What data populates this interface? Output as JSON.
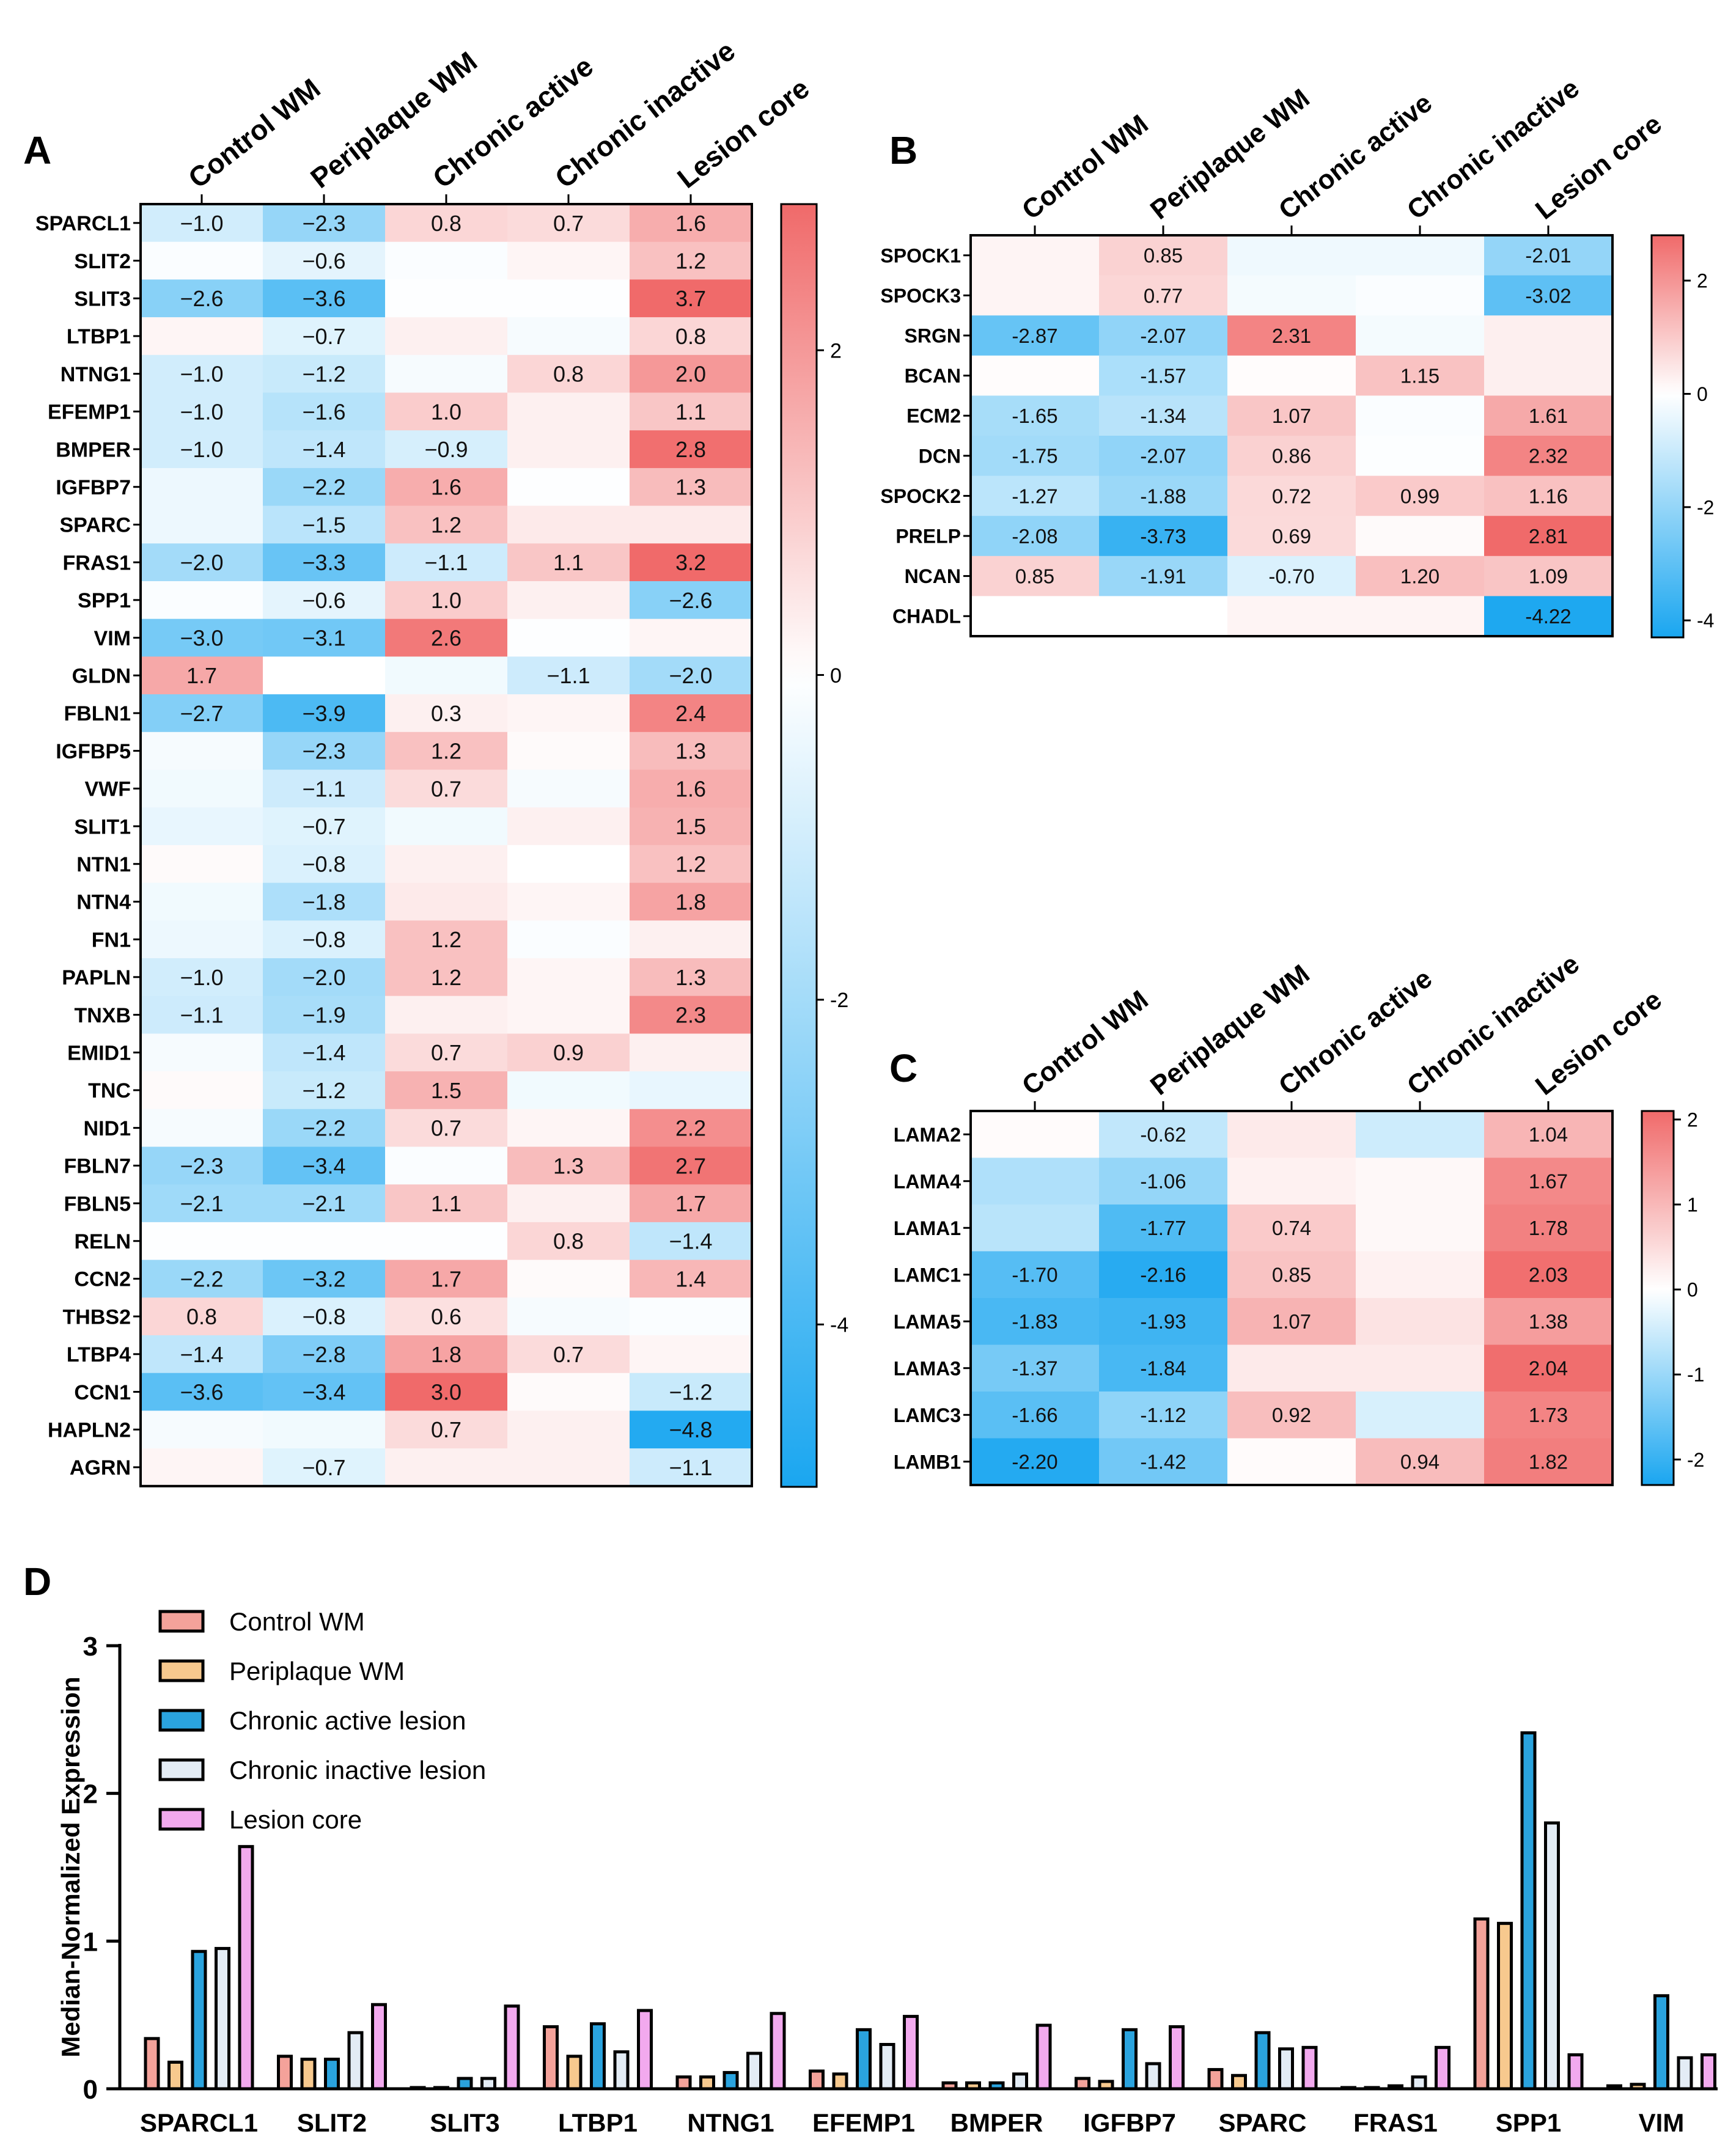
{
  "columns": [
    "Control WM",
    "Periplaque WM",
    "Chronic active",
    "Chronic inactive",
    "Lesion core"
  ],
  "colors": {
    "pos": "#f06a6a",
    "neg": "#1aa6f0",
    "axis": "#000000"
  },
  "chart_data": [
    {
      "panel": "A",
      "type": "heatmap",
      "columns": [
        "Control WM",
        "Periplaque WM",
        "Chronic active",
        "Chronic inactive",
        "Lesion core"
      ],
      "color_range": [
        -5,
        2.9
      ],
      "colorbar_ticks": [
        2,
        0,
        -2,
        -4
      ],
      "colorbar_ticks_text": [
        "2",
        "0",
        "-2",
        "-4"
      ],
      "rows": [
        {
          "gene": "SPARCL1",
          "values": [
            -1.0,
            -2.3,
            0.8,
            0.7,
            1.6
          ],
          "labels": [
            "−1.0",
            "−2.3",
            "0.8",
            "0.7",
            "1.6"
          ]
        },
        {
          "gene": "SLIT2",
          "values": [
            -0.1,
            -0.6,
            -0.1,
            0.2,
            1.2
          ],
          "labels": [
            "",
            "−0.6",
            "",
            "",
            "1.2"
          ]
        },
        {
          "gene": "SLIT3",
          "values": [
            -2.6,
            -3.6,
            -0.05,
            -0.05,
            3.7
          ],
          "labels": [
            "−2.6",
            "−3.6",
            "",
            "",
            "3.7"
          ]
        },
        {
          "gene": "LTBP1",
          "values": [
            0.2,
            -0.7,
            0.3,
            -0.2,
            0.8
          ],
          "labels": [
            "",
            "−0.7",
            "",
            "",
            "0.8"
          ]
        },
        {
          "gene": "NTNG1",
          "values": [
            -1.0,
            -1.2,
            -0.2,
            0.8,
            2.0
          ],
          "labels": [
            "−1.0",
            "−1.2",
            "",
            "0.8",
            "2.0"
          ]
        },
        {
          "gene": "EFEMP1",
          "values": [
            -1.0,
            -1.6,
            1.0,
            0.3,
            1.1
          ],
          "labels": [
            "−1.0",
            "−1.6",
            "1.0",
            "",
            "1.1"
          ]
        },
        {
          "gene": "BMPER",
          "values": [
            -1.0,
            -1.4,
            -0.9,
            0.3,
            2.8
          ],
          "labels": [
            "−1.0",
            "−1.4",
            "−0.9",
            "",
            "2.8"
          ]
        },
        {
          "gene": "IGFBP7",
          "values": [
            -0.4,
            -2.2,
            1.6,
            -0.05,
            1.3
          ],
          "labels": [
            "",
            "−2.2",
            "1.6",
            "",
            "1.3"
          ]
        },
        {
          "gene": "SPARC",
          "values": [
            -0.4,
            -1.5,
            1.2,
            0.4,
            0.4
          ],
          "labels": [
            "",
            "−1.5",
            "1.2",
            "",
            ""
          ]
        },
        {
          "gene": "FRAS1",
          "values": [
            -2.0,
            -3.3,
            -1.1,
            1.1,
            3.2
          ],
          "labels": [
            "−2.0",
            "−3.3",
            "−1.1",
            "1.1",
            "3.2"
          ]
        },
        {
          "gene": "SPP1",
          "values": [
            -0.1,
            -0.6,
            1.0,
            0.3,
            -2.6
          ],
          "labels": [
            "",
            "−0.6",
            "1.0",
            "",
            "−2.6"
          ]
        },
        {
          "gene": "VIM",
          "values": [
            -3.0,
            -3.1,
            2.6,
            -0.05,
            0.2
          ],
          "labels": [
            "−3.0",
            "−3.1",
            "2.6",
            "",
            ""
          ]
        },
        {
          "gene": "GLDN",
          "values": [
            1.7,
            0.0,
            -0.3,
            -1.1,
            -2.0
          ],
          "labels": [
            "1.7",
            "",
            "",
            "−1.1",
            "−2.0"
          ]
        },
        {
          "gene": "FBLN1",
          "values": [
            -2.7,
            -3.9,
            0.3,
            0.2,
            2.4
          ],
          "labels": [
            "−2.7",
            "−3.9",
            "0.3",
            "",
            "2.4"
          ]
        },
        {
          "gene": "IGFBP5",
          "values": [
            -0.2,
            -2.3,
            1.2,
            0.1,
            1.3
          ],
          "labels": [
            "",
            "−2.3",
            "1.2",
            "",
            "1.3"
          ]
        },
        {
          "gene": "VWF",
          "values": [
            -0.3,
            -1.1,
            0.7,
            -0.2,
            1.6
          ],
          "labels": [
            "",
            "−1.1",
            "0.7",
            "",
            "1.6"
          ]
        },
        {
          "gene": "SLIT1",
          "values": [
            -0.5,
            -0.7,
            -0.3,
            0.3,
            1.5
          ],
          "labels": [
            "",
            "−0.7",
            "",
            "",
            "1.5"
          ]
        },
        {
          "gene": "NTN1",
          "values": [
            0.1,
            -0.8,
            0.3,
            0.0,
            1.2
          ],
          "labels": [
            "",
            "−0.8",
            "",
            "",
            "1.2"
          ]
        },
        {
          "gene": "NTN4",
          "values": [
            -0.3,
            -1.8,
            0.4,
            0.2,
            1.8
          ],
          "labels": [
            "",
            "−1.8",
            "",
            "",
            "1.8"
          ]
        },
        {
          "gene": "FN1",
          "values": [
            -0.4,
            -0.8,
            1.2,
            -0.1,
            0.3
          ],
          "labels": [
            "",
            "−0.8",
            "1.2",
            "",
            ""
          ]
        },
        {
          "gene": "PAPLN",
          "values": [
            -1.0,
            -2.0,
            1.2,
            0.2,
            1.3
          ],
          "labels": [
            "−1.0",
            "−2.0",
            "1.2",
            "",
            "1.3"
          ]
        },
        {
          "gene": "TNXB",
          "values": [
            -1.1,
            -1.9,
            0.3,
            0.2,
            2.3
          ],
          "labels": [
            "−1.1",
            "−1.9",
            "",
            "",
            "2.3"
          ]
        },
        {
          "gene": "EMID1",
          "values": [
            -0.2,
            -1.4,
            0.7,
            0.9,
            0.3
          ],
          "labels": [
            "",
            "−1.4",
            "0.7",
            "0.9",
            ""
          ]
        },
        {
          "gene": "TNC",
          "values": [
            0.1,
            -1.2,
            1.5,
            -0.3,
            -0.5
          ],
          "labels": [
            "",
            "−1.2",
            "1.5",
            "",
            ""
          ]
        },
        {
          "gene": "NID1",
          "values": [
            -0.2,
            -2.2,
            0.7,
            0.2,
            2.2
          ],
          "labels": [
            "",
            "−2.2",
            "0.7",
            "",
            "2.2"
          ]
        },
        {
          "gene": "FBLN7",
          "values": [
            -2.3,
            -3.4,
            -0.1,
            1.3,
            2.7
          ],
          "labels": [
            "−2.3",
            "−3.4",
            "",
            "1.3",
            "2.7"
          ]
        },
        {
          "gene": "FBLN5",
          "values": [
            -2.1,
            -2.1,
            1.1,
            0.3,
            1.7
          ],
          "labels": [
            "−2.1",
            "−2.1",
            "1.1",
            "",
            "1.7"
          ]
        },
        {
          "gene": "RELN",
          "values": [
            -0.05,
            -0.05,
            -0.05,
            0.8,
            -1.4
          ],
          "labels": [
            "",
            "",
            "",
            "0.8",
            "−1.4"
          ]
        },
        {
          "gene": "CCN2",
          "values": [
            -2.2,
            -3.2,
            1.7,
            0.1,
            1.4
          ],
          "labels": [
            "−2.2",
            "−3.2",
            "1.7",
            "",
            "1.4"
          ]
        },
        {
          "gene": "THBS2",
          "values": [
            0.8,
            -0.8,
            0.6,
            -0.2,
            -0.1
          ],
          "labels": [
            "0.8",
            "−0.8",
            "0.6",
            "",
            ""
          ]
        },
        {
          "gene": "LTBP4",
          "values": [
            -1.4,
            -2.8,
            1.8,
            0.7,
            0.2
          ],
          "labels": [
            "−1.4",
            "−2.8",
            "1.8",
            "0.7",
            ""
          ]
        },
        {
          "gene": "CCN1",
          "values": [
            -3.6,
            -3.4,
            3.0,
            0.1,
            -1.2
          ],
          "labels": [
            "−3.6",
            "−3.4",
            "3.0",
            "",
            "−1.2"
          ]
        },
        {
          "gene": "HAPLN2",
          "values": [
            -0.2,
            -0.3,
            0.7,
            0.3,
            -4.8
          ],
          "labels": [
            "",
            "",
            "0.7",
            "",
            "−4.8"
          ]
        },
        {
          "gene": "AGRN",
          "values": [
            0.2,
            -0.7,
            0.3,
            0.3,
            -1.1
          ],
          "labels": [
            "",
            "−0.7",
            "",
            "",
            "−1.1"
          ]
        }
      ]
    },
    {
      "panel": "B",
      "type": "heatmap",
      "columns": [
        "Control WM",
        "Periplaque WM",
        "Chronic active",
        "Chronic inactive",
        "Lesion core"
      ],
      "color_range": [
        -4.3,
        2.8
      ],
      "colorbar_ticks": [
        2,
        0,
        -2,
        -4
      ],
      "colorbar_ticks_text": [
        "2",
        "0",
        "-2",
        "-4"
      ],
      "rows": [
        {
          "gene": "SPOCK1",
          "values": [
            0.2,
            0.85,
            -0.3,
            -0.3,
            -2.01
          ],
          "labels": [
            "",
            "0.85",
            "",
            "",
            "-2.01"
          ]
        },
        {
          "gene": "SPOCK3",
          "values": [
            0.2,
            0.77,
            -0.2,
            -0.1,
            -3.02
          ],
          "labels": [
            "",
            "0.77",
            "",
            "",
            "-3.02"
          ]
        },
        {
          "gene": "SRGN",
          "values": [
            -2.87,
            -2.07,
            2.31,
            -0.2,
            0.3
          ],
          "labels": [
            "-2.87",
            "-2.07",
            "2.31",
            "",
            ""
          ]
        },
        {
          "gene": "BCAN",
          "values": [
            0.05,
            -1.57,
            0.05,
            1.15,
            0.3
          ],
          "labels": [
            "",
            "-1.57",
            "",
            "1.15",
            ""
          ]
        },
        {
          "gene": "ECM2",
          "values": [
            -1.65,
            -1.34,
            1.07,
            -0.1,
            1.61
          ],
          "labels": [
            "-1.65",
            "-1.34",
            "1.07",
            "",
            "1.61"
          ]
        },
        {
          "gene": "DCN",
          "values": [
            -1.75,
            -2.07,
            0.86,
            -0.05,
            2.32
          ],
          "labels": [
            "-1.75",
            "-2.07",
            "0.86",
            "",
            "2.32"
          ]
        },
        {
          "gene": "SPOCK2",
          "values": [
            -1.27,
            -1.88,
            0.72,
            0.99,
            1.16
          ],
          "labels": [
            "-1.27",
            "-1.88",
            "0.72",
            "0.99",
            "1.16"
          ]
        },
        {
          "gene": "PRELP",
          "values": [
            -2.08,
            -3.73,
            0.69,
            0.1,
            2.81
          ],
          "labels": [
            "-2.08",
            "-3.73",
            "0.69",
            "",
            "2.81"
          ]
        },
        {
          "gene": "NCAN",
          "values": [
            0.85,
            -1.91,
            -0.7,
            1.2,
            1.09
          ],
          "labels": [
            "0.85",
            "-1.91",
            "-0.70",
            "1.20",
            "1.09"
          ]
        },
        {
          "gene": "CHADL",
          "values": [
            0.0,
            0.0,
            0.2,
            0.2,
            -4.22
          ],
          "labels": [
            "",
            "",
            "",
            "",
            "-4.22"
          ]
        }
      ]
    },
    {
      "panel": "C",
      "type": "heatmap",
      "columns": [
        "Control WM",
        "Periplaque WM",
        "Chronic active",
        "Chronic inactive",
        "Lesion core"
      ],
      "color_range": [
        -2.3,
        2.1
      ],
      "colorbar_ticks": [
        2,
        1,
        0,
        -1,
        -2
      ],
      "colorbar_ticks_text": [
        "2",
        "1",
        "0",
        "-1",
        "-2"
      ],
      "rows": [
        {
          "gene": "LAMA2",
          "values": [
            0.05,
            -0.62,
            0.3,
            -0.5,
            1.04
          ],
          "labels": [
            "",
            "-0.62",
            "",
            "",
            "1.04"
          ]
        },
        {
          "gene": "LAMA4",
          "values": [
            -0.8,
            -1.06,
            0.2,
            0.1,
            1.67
          ],
          "labels": [
            "",
            "-1.06",
            "",
            "",
            "1.67"
          ]
        },
        {
          "gene": "LAMA1",
          "values": [
            -0.7,
            -1.77,
            0.74,
            0.1,
            1.78
          ],
          "labels": [
            "",
            "-1.77",
            "0.74",
            "",
            "1.78"
          ]
        },
        {
          "gene": "LAMC1",
          "values": [
            -1.7,
            -2.16,
            0.85,
            0.2,
            2.03
          ],
          "labels": [
            "-1.70",
            "-2.16",
            "0.85",
            "",
            "2.03"
          ]
        },
        {
          "gene": "LAMA5",
          "values": [
            -1.83,
            -1.93,
            1.07,
            0.4,
            1.38
          ],
          "labels": [
            "-1.83",
            "-1.93",
            "1.07",
            "",
            "1.38"
          ]
        },
        {
          "gene": "LAMA3",
          "values": [
            -1.37,
            -1.84,
            0.3,
            0.3,
            2.04
          ],
          "labels": [
            "-1.37",
            "-1.84",
            "",
            "",
            "2.04"
          ]
        },
        {
          "gene": "LAMC3",
          "values": [
            -1.66,
            -1.12,
            0.92,
            -0.4,
            1.73
          ],
          "labels": [
            "-1.66",
            "-1.12",
            "0.92",
            "",
            "1.73"
          ]
        },
        {
          "gene": "LAMB1",
          "values": [
            -2.2,
            -1.42,
            0.05,
            0.94,
            1.82
          ],
          "labels": [
            "-2.20",
            "-1.42",
            "",
            "0.94",
            "1.82"
          ]
        }
      ]
    },
    {
      "panel": "D",
      "type": "bar",
      "ylabel": "Median-Normalized Expression",
      "ylim": [
        0,
        3
      ],
      "yticks": [
        0,
        1,
        2,
        3
      ],
      "yticks_text": [
        "0",
        "1",
        "2",
        "3"
      ],
      "categories": [
        "SPARCL1",
        "SLIT2",
        "SLIT3",
        "LTBP1",
        "NTNG1",
        "EFEMP1",
        "BMPER",
        "IGFBP7",
        "SPARC",
        "FRAS1",
        "SPP1",
        "VIM"
      ],
      "series": [
        {
          "name": "Control WM",
          "color": "#f4a29a",
          "values": [
            0.34,
            0.22,
            0.0,
            0.42,
            0.08,
            0.12,
            0.04,
            0.07,
            0.13,
            0.0,
            1.15,
            0.02
          ]
        },
        {
          "name": "Periplaque WM",
          "color": "#f7c98e",
          "values": [
            0.18,
            0.2,
            0.0,
            0.22,
            0.08,
            0.1,
            0.04,
            0.05,
            0.09,
            0.0,
            1.12,
            0.03
          ]
        },
        {
          "name": "Chronic active lesion",
          "color": "#2aa3de",
          "values": [
            0.93,
            0.2,
            0.07,
            0.44,
            0.11,
            0.4,
            0.04,
            0.4,
            0.38,
            0.02,
            2.41,
            0.63
          ]
        },
        {
          "name": "Chronic inactive lesion",
          "color": "#e3ecf5",
          "values": [
            0.95,
            0.38,
            0.07,
            0.25,
            0.24,
            0.3,
            0.1,
            0.17,
            0.27,
            0.08,
            1.8,
            0.21
          ]
        },
        {
          "name": "Lesion core",
          "color": "#f2a9ee",
          "values": [
            1.64,
            0.57,
            0.56,
            0.53,
            0.51,
            0.49,
            0.43,
            0.42,
            0.28,
            0.28,
            0.23,
            0.23
          ]
        }
      ]
    }
  ]
}
